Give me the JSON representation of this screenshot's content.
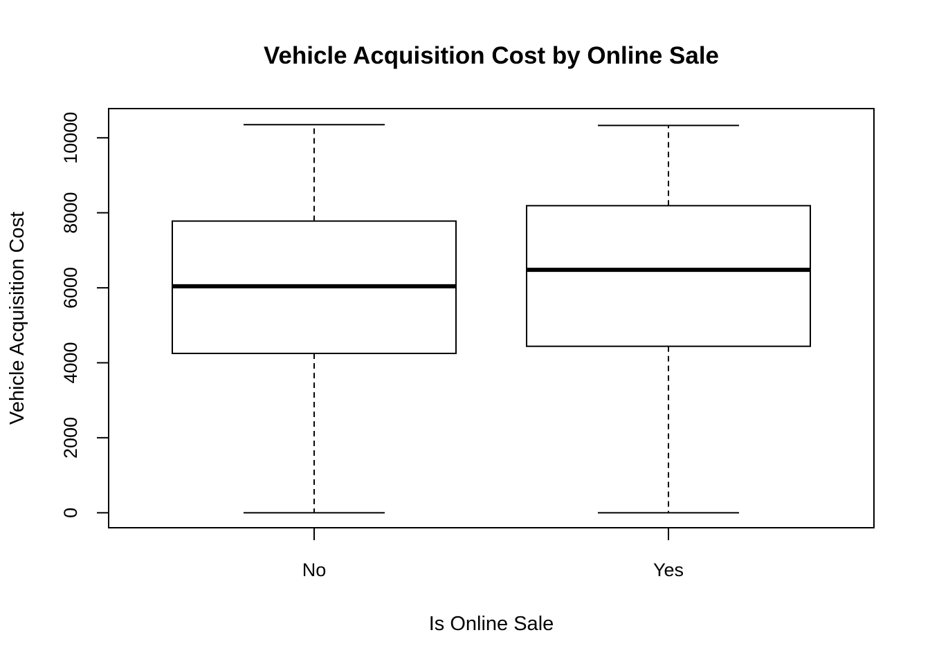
{
  "chart_data": {
    "type": "boxplot",
    "title": "Vehicle Acquisition Cost by Online Sale",
    "xlabel": "Is Online Sale",
    "ylabel": "Vehicle Acquisition Cost",
    "categories": [
      "No",
      "Yes"
    ],
    "yticks": [
      "0",
      "2000",
      "4000",
      "6000",
      "8000",
      "10000"
    ],
    "ylim": [
      -400,
      10780
    ],
    "grid": false,
    "boxes": [
      {
        "category": "No",
        "min": 0,
        "q1": 4250,
        "median": 6040,
        "q3": 7780,
        "max": 10350
      },
      {
        "category": "Yes",
        "min": 0,
        "q1": 4440,
        "median": 6480,
        "q3": 8190,
        "max": 10330
      }
    ]
  }
}
